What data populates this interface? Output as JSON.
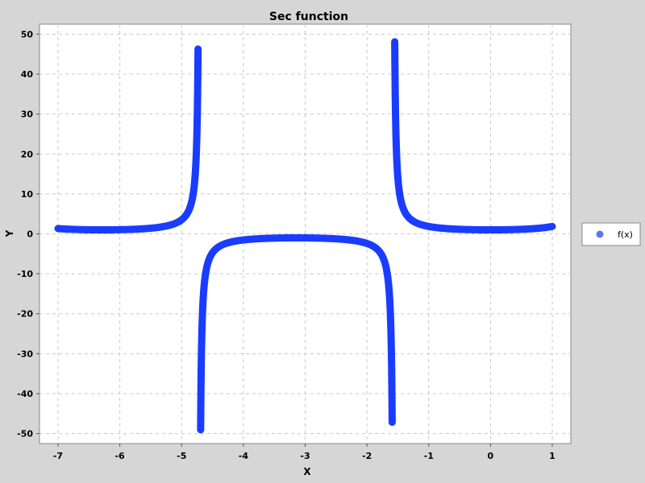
{
  "chart_data": {
    "type": "scatter",
    "title": "Sec function",
    "xlabel": "X",
    "ylabel": "Y",
    "xlim": [
      -7.3,
      1.3
    ],
    "ylim": [
      -52.5,
      52.5
    ],
    "x_ticks": [
      -7,
      -6,
      -5,
      -4,
      -3,
      -2,
      -1,
      0,
      1
    ],
    "y_ticks": [
      -50,
      -40,
      -30,
      -20,
      -10,
      0,
      10,
      20,
      30,
      40,
      50
    ],
    "grid": true,
    "legend_position": "right",
    "series": [
      {
        "name": "f(x)",
        "function": "sec(x)",
        "x_range": [
          -7,
          1
        ],
        "y_clip": [
          -50,
          50
        ],
        "color": "#1a3cff",
        "legend_color": "#5a78f0"
      }
    ]
  }
}
